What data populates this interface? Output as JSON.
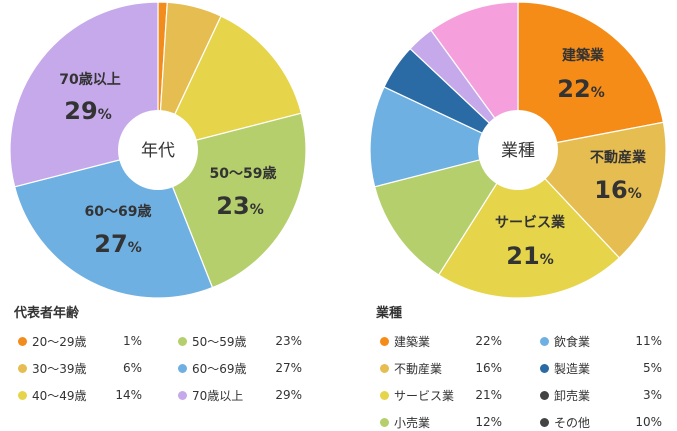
{
  "chart_data": [
    {
      "type": "pie",
      "center_label": "年代",
      "legend_title": "代表者年齢",
      "slices": [
        {
          "label": "20〜29歳",
          "value": 1,
          "display": "1%",
          "color": "#f28c1c"
        },
        {
          "label": "30〜39歳",
          "value": 6,
          "display": "6%",
          "color": "#e6bd50"
        },
        {
          "label": "40〜49歳",
          "value": 14,
          "display": "14%",
          "color": "#e6d54a"
        },
        {
          "label": "50〜59歳",
          "value": 23,
          "display": "23%",
          "color": "#b5cf6d"
        },
        {
          "label": "60〜69歳",
          "value": 27,
          "display": "27%",
          "color": "#6fb0e2"
        },
        {
          "label": "70歳以上",
          "value": 29,
          "display": "29%",
          "color": "#c6a9ea"
        }
      ]
    },
    {
      "type": "pie",
      "center_label": "業種",
      "legend_title": "業種",
      "slices": [
        {
          "label": "建築業",
          "value": 22,
          "display": "22%",
          "color": "#f58c18"
        },
        {
          "label": "不動産業",
          "value": 16,
          "display": "16%",
          "color": "#e6bd50"
        },
        {
          "label": "サービス業",
          "value": 21,
          "display": "21%",
          "color": "#e6d54a"
        },
        {
          "label": "小売業",
          "value": 12,
          "display": "12%",
          "color": "#b5cf6d"
        },
        {
          "label": "飲食業",
          "value": 11,
          "display": "11%",
          "color": "#6fb0e2"
        },
        {
          "label": "製造業",
          "value": 5,
          "display": "5%",
          "color": "#2a6aa5"
        },
        {
          "label": "卸売業",
          "value": 3,
          "display": "3%",
          "color": "#c6a9ea"
        },
        {
          "label": "その他",
          "value": 10,
          "display": "10%",
          "color": "#f5a0dc"
        }
      ],
      "legend_colors": {
        "卸売業": "#444444",
        "その他": "#444444"
      }
    }
  ]
}
